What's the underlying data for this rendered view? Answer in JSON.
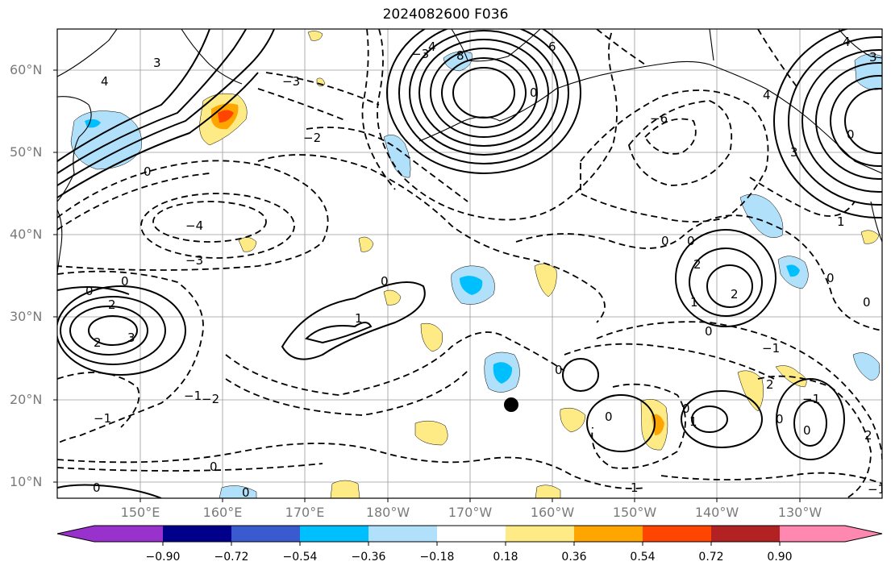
{
  "title": "2024082600 F036",
  "lat_labels": [
    "60°N",
    "50°N",
    "40°N",
    "30°N",
    "20°N",
    "10°N"
  ],
  "lon_labels": [
    "150°E",
    "160°E",
    "170°E",
    "180°W",
    "170°W",
    "160°W",
    "150°W",
    "140°W",
    "130°W"
  ],
  "colorbar": {
    "ticks": [
      "−0.90",
      "−0.72",
      "−0.54",
      "−0.36",
      "−0.18",
      "0.18",
      "0.36",
      "0.54",
      "0.72",
      "0.90"
    ],
    "colors": [
      "#9932cc",
      "#00008b",
      "#3a5bd0",
      "#00bfff",
      "#b0e0fa",
      "#ffffff",
      "#ffeb85",
      "#ffa500",
      "#ff4500",
      "#b22222",
      "#ff88b0"
    ]
  },
  "contour_labels": [
    "0",
    "1",
    "2",
    "3",
    "4",
    "6",
    "8",
    "−1",
    "−2",
    "−3",
    "−4",
    "−6"
  ],
  "marker": "storm-center-dot"
}
